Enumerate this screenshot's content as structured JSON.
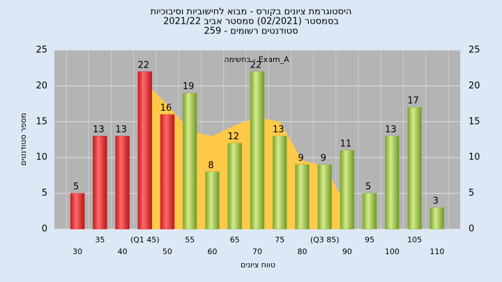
{
  "chart_data": {
    "type": "bar",
    "title": "היסטוגרמת ציונים בקורס - מבוא לחישוביות וסיבוכיות",
    "subtitle": "בסמסטר (02/2021) סמסטר אביב 2021/22",
    "subtitle2": "סטודנטים רשומים - 259",
    "annotation": "Exam_A - בחשימה",
    "xlabel": "טווח ציונים",
    "ylabel": "מספר סטודנטים",
    "categories": [
      "30",
      "35",
      "40",
      "(Q1 45)",
      "50",
      "55",
      "60",
      "65",
      "70",
      "75",
      "80",
      "(Q3 85)",
      "90",
      "95",
      "100",
      "105",
      "110"
    ],
    "values": [
      5,
      13,
      13,
      22,
      16,
      19,
      8,
      12,
      22,
      13,
      9,
      9,
      11,
      5,
      13,
      17,
      3
    ],
    "colors": [
      "#e0282c",
      "#e0282c",
      "#e0282c",
      "#e0282c",
      "#e0282c",
      "#8cb83c",
      "#8cb83c",
      "#8cb83c",
      "#8cb83c",
      "#8cb83c",
      "#8cb83c",
      "#8cb83c",
      "#8cb83c",
      "#8cb83c",
      "#8cb83c",
      "#8cb83c",
      "#8cb83c"
    ],
    "area": {
      "color": "#ffc94a",
      "values": [
        null,
        null,
        null,
        20.5,
        17.4,
        13.7,
        13,
        14.5,
        15.6,
        15,
        9.6,
        8.8,
        3,
        null,
        null,
        null,
        null
      ]
    },
    "ylim": [
      0,
      25
    ],
    "yticks": [
      0,
      5,
      10,
      15,
      20,
      25
    ],
    "grid": true
  }
}
